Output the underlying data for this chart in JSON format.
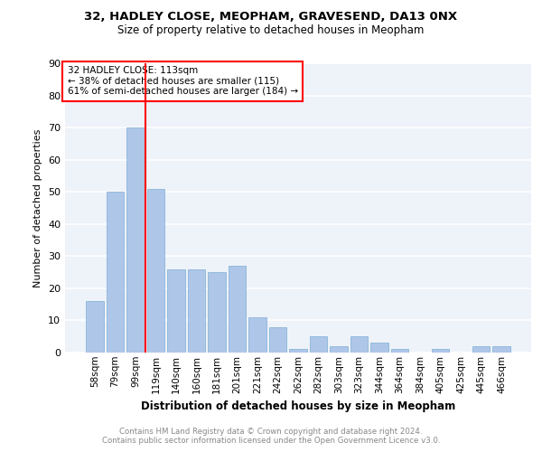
{
  "title1": "32, HADLEY CLOSE, MEOPHAM, GRAVESEND, DA13 0NX",
  "title2": "Size of property relative to detached houses in Meopham",
  "xlabel": "Distribution of detached houses by size in Meopham",
  "ylabel": "Number of detached properties",
  "categories": [
    "58sqm",
    "79sqm",
    "99sqm",
    "119sqm",
    "140sqm",
    "160sqm",
    "181sqm",
    "201sqm",
    "221sqm",
    "242sqm",
    "262sqm",
    "282sqm",
    "303sqm",
    "323sqm",
    "344sqm",
    "364sqm",
    "384sqm",
    "405sqm",
    "425sqm",
    "445sqm",
    "466sqm"
  ],
  "values": [
    16,
    50,
    70,
    51,
    26,
    26,
    25,
    27,
    11,
    8,
    1,
    5,
    2,
    5,
    3,
    1,
    0,
    1,
    0,
    2,
    2
  ],
  "bar_color": "#aec6e8",
  "bar_edge_color": "#7aafd4",
  "vline_color": "red",
  "annotation_text": "32 HADLEY CLOSE: 113sqm\n← 38% of detached houses are smaller (115)\n61% of semi-detached houses are larger (184) →",
  "annotation_box_color": "white",
  "annotation_box_edge_color": "red",
  "ylim": [
    0,
    90
  ],
  "yticks": [
    0,
    10,
    20,
    30,
    40,
    50,
    60,
    70,
    80,
    90
  ],
  "footer": "Contains HM Land Registry data © Crown copyright and database right 2024.\nContains public sector information licensed under the Open Government Licence v3.0.",
  "bg_color": "#eef2f9",
  "grid_color": "white"
}
